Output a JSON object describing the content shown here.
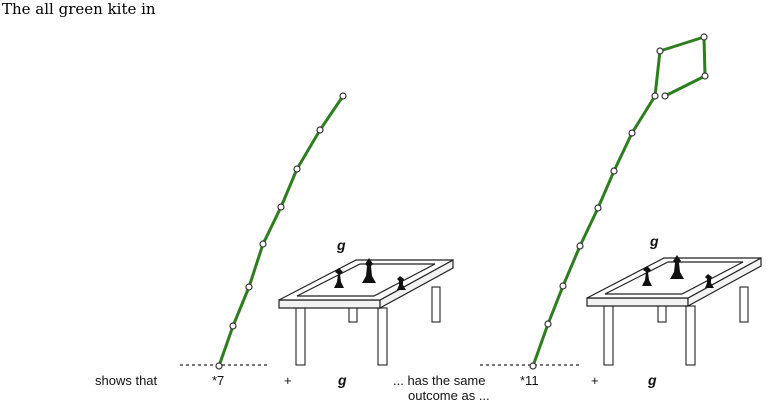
{
  "heading": "The all green kite in",
  "colors": {
    "edge": "#2e7d1e",
    "ink": "#111111"
  },
  "labels": {
    "shows_that": "shows that",
    "seven": "*7",
    "plus_1": "+",
    "g_1": "g",
    "has_same": "... has the same",
    "outcome_as": "outcome as ...",
    "eleven": "*11",
    "plus_2": "+",
    "g_2": "g"
  },
  "tables": {
    "left_label": "g",
    "right_label": "g"
  }
}
